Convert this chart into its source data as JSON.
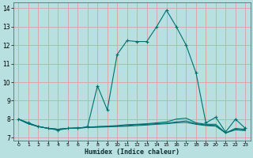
{
  "xlabel": "Humidex (Indice chaleur)",
  "bg_color": "#b8e0e0",
  "grid_color": "#d8a8a8",
  "line_color": "#007070",
  "xlim": [
    -0.5,
    23.5
  ],
  "ylim": [
    6.85,
    14.3
  ],
  "xticks": [
    0,
    1,
    2,
    3,
    4,
    5,
    6,
    7,
    8,
    9,
    10,
    11,
    12,
    13,
    14,
    15,
    16,
    17,
    18,
    19,
    20,
    21,
    22,
    23
  ],
  "yticks": [
    7,
    8,
    9,
    10,
    11,
    12,
    13,
    14
  ],
  "lines": [
    {
      "x": [
        0,
        1,
        2,
        3,
        4,
        5,
        6,
        7,
        8,
        9,
        10,
        11,
        12,
        13,
        14,
        15,
        16,
        17,
        18,
        19,
        20,
        21,
        22,
        23
      ],
      "y": [
        8.0,
        7.8,
        7.6,
        7.5,
        7.4,
        7.5,
        7.5,
        7.6,
        9.8,
        8.5,
        11.5,
        12.25,
        12.2,
        12.2,
        13.0,
        13.9,
        13.0,
        12.0,
        10.5,
        7.8,
        8.1,
        7.3,
        8.0,
        7.5
      ],
      "marker": "+"
    },
    {
      "x": [
        0,
        1,
        2,
        3,
        4,
        5,
        6,
        7,
        8,
        9,
        10,
        11,
        12,
        13,
        14,
        15,
        16,
        17,
        18,
        19,
        20,
        21,
        22,
        23
      ],
      "y": [
        8.0,
        7.75,
        7.6,
        7.5,
        7.45,
        7.5,
        7.52,
        7.55,
        7.6,
        7.62,
        7.65,
        7.7,
        7.72,
        7.75,
        7.8,
        7.85,
        8.0,
        8.05,
        7.8,
        7.72,
        7.72,
        7.25,
        7.5,
        7.45
      ],
      "marker": null
    },
    {
      "x": [
        0,
        1,
        2,
        3,
        4,
        5,
        6,
        7,
        8,
        9,
        10,
        11,
        12,
        13,
        14,
        15,
        16,
        17,
        18,
        19,
        20,
        21,
        22,
        23
      ],
      "y": [
        8.0,
        7.75,
        7.6,
        7.5,
        7.45,
        7.5,
        7.52,
        7.55,
        7.58,
        7.6,
        7.62,
        7.65,
        7.7,
        7.72,
        7.75,
        7.78,
        7.85,
        7.9,
        7.75,
        7.68,
        7.65,
        7.25,
        7.45,
        7.4
      ],
      "marker": null
    },
    {
      "x": [
        0,
        1,
        2,
        3,
        4,
        5,
        6,
        7,
        8,
        9,
        10,
        11,
        12,
        13,
        14,
        15,
        16,
        17,
        18,
        19,
        20,
        21,
        22,
        23
      ],
      "y": [
        8.0,
        7.75,
        7.6,
        7.5,
        7.45,
        7.5,
        7.52,
        7.55,
        7.56,
        7.58,
        7.6,
        7.62,
        7.65,
        7.68,
        7.72,
        7.75,
        7.8,
        7.82,
        7.72,
        7.65,
        7.62,
        7.25,
        7.42,
        7.38
      ],
      "marker": null
    }
  ]
}
